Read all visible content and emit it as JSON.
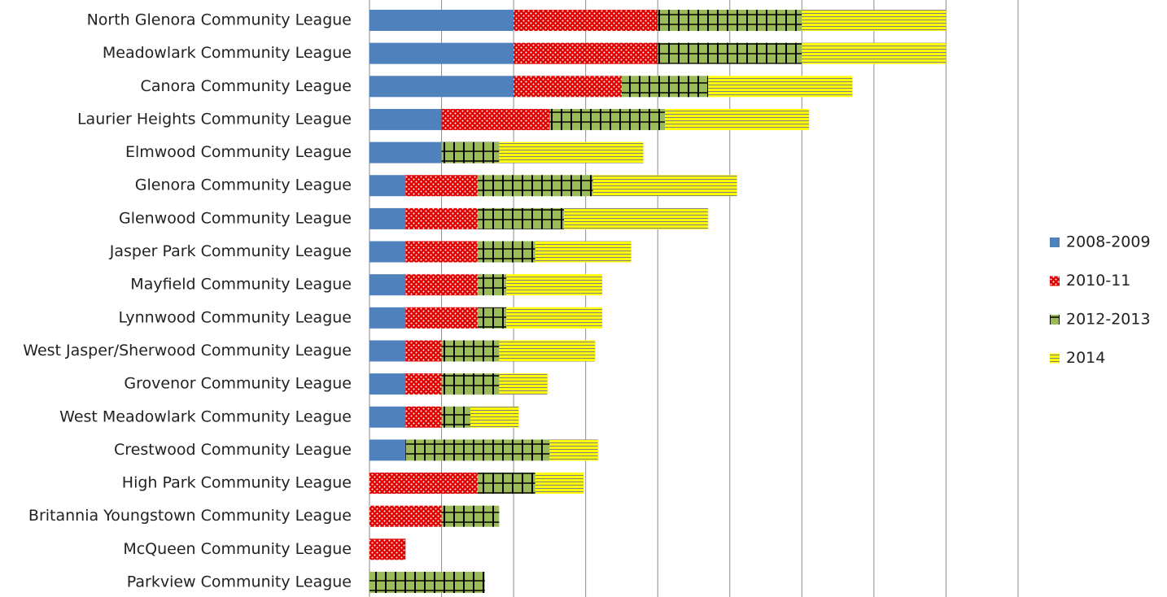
{
  "chart_data": {
    "type": "bar",
    "orientation": "horizontal",
    "stacked": true,
    "categories": [
      "North Glenora Community League",
      "Meadowlark Community League",
      "Canora Community League",
      "Laurier Heights Community League",
      "Elmwood Community League",
      "Glenora Community League",
      "Glenwood Community League",
      "Jasper Park Community League",
      "Mayfield Community League",
      "Lynnwood Community League",
      "West Jasper/Sherwood Community League",
      "Grovenor Community League",
      "West Meadowlark Community League",
      "Crestwood Community League",
      "High Park Community League",
      "Britannia Youngstown Community League",
      "McQueen Community League",
      "Parkview Community League"
    ],
    "series": [
      {
        "name": "2008-2009",
        "color": "#4f81bd",
        "pattern": "solid",
        "values": [
          2,
          2,
          2,
          1,
          1,
          0.5,
          0.5,
          0.5,
          0.5,
          0.5,
          0.5,
          0.5,
          0.5,
          0.5,
          null,
          null,
          null,
          null
        ]
      },
      {
        "name": "2010-11",
        "color": "#e00000",
        "pattern": "dots",
        "values": [
          2,
          2,
          1.5,
          1.5,
          null,
          1,
          1,
          1,
          1,
          1,
          0.5,
          0.5,
          0.5,
          null,
          1.5,
          1,
          0.5,
          null
        ]
      },
      {
        "name": "2012-2013",
        "color": "#9bbb59",
        "pattern": "grid",
        "values": [
          2,
          2,
          1.2,
          1.6,
          0.8,
          1.6,
          1.2,
          0.8,
          0.4,
          0.4,
          0.8,
          0.8,
          0.4,
          2,
          0.8,
          0.8,
          null,
          1.6
        ]
      },
      {
        "name": "2014",
        "color": "#ffff00",
        "pattern": "horizontal",
        "values": [
          2,
          2,
          2,
          2,
          2,
          2,
          2,
          1.33,
          1.33,
          1.33,
          1.33,
          0.67,
          0.67,
          0.67,
          0.67,
          null,
          null,
          null
        ]
      }
    ],
    "xlim": [
      0,
      9
    ],
    "xticks": [
      0,
      1,
      2,
      3,
      4,
      5,
      6,
      7,
      8,
      9
    ],
    "grid": true,
    "legend": "right"
  }
}
